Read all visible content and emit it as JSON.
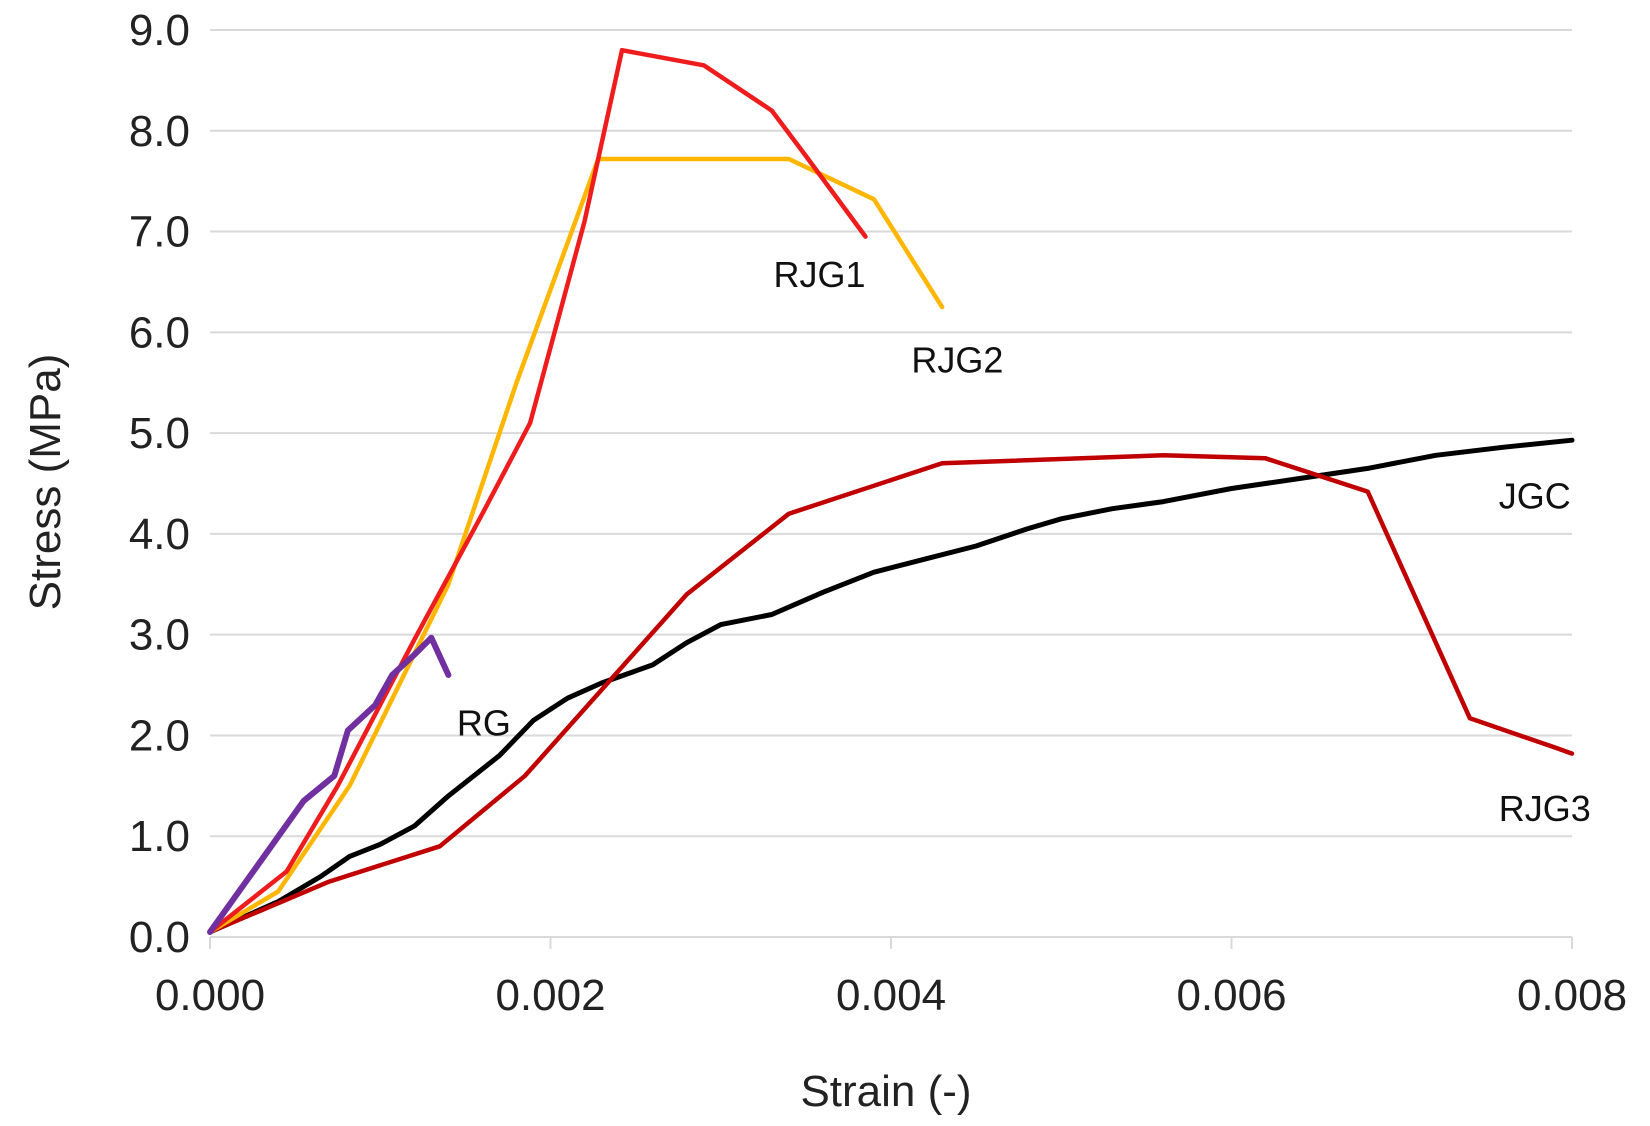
{
  "chart_data": {
    "type": "line",
    "title": "",
    "xlabel": "Strain (-)",
    "ylabel": "Stress (MPa)",
    "xlim": [
      0,
      0.008
    ],
    "ylim": [
      0,
      9
    ],
    "x_ticks": [
      0,
      0.002,
      0.004,
      0.006,
      0.008
    ],
    "x_tick_labels": [
      "0.000",
      "0.002",
      "0.004",
      "0.006",
      "0.008"
    ],
    "y_ticks": [
      0,
      1,
      2,
      3,
      4,
      5,
      6,
      7,
      8,
      9
    ],
    "y_tick_labels": [
      "0.0",
      "1.0",
      "2.0",
      "3.0",
      "4.0",
      "5.0",
      "6.0",
      "7.0",
      "8.0",
      "9.0"
    ],
    "grid": "horizontal",
    "legend": "none (series labeled inline)",
    "series": [
      {
        "name": "RG",
        "color": "#7030a0",
        "label": "RG",
        "points": [
          [
            0,
            0.05
          ],
          [
            0.00055,
            1.35
          ],
          [
            0.00073,
            1.6
          ],
          [
            0.00081,
            2.05
          ],
          [
            0.00097,
            2.3
          ],
          [
            0.00107,
            2.6
          ],
          [
            0.0012,
            2.8
          ],
          [
            0.0013,
            2.97
          ],
          [
            0.0014,
            2.6
          ]
        ]
      },
      {
        "name": "RJG1",
        "color": "#ee1c1c",
        "label": "RJG1",
        "points": [
          [
            0,
            0.05
          ],
          [
            0.00045,
            0.65
          ],
          [
            0.00075,
            1.5
          ],
          [
            0.0012,
            2.95
          ],
          [
            0.0016,
            4.2
          ],
          [
            0.00188,
            5.1
          ],
          [
            0.0022,
            7.1
          ],
          [
            0.00242,
            8.8
          ],
          [
            0.0029,
            8.65
          ],
          [
            0.0033,
            8.2
          ],
          [
            0.0035,
            7.75
          ],
          [
            0.00385,
            6.95
          ]
        ]
      },
      {
        "name": "RJG2",
        "color": "#ffb600",
        "label": "RJG2",
        "points": [
          [
            0,
            0.05
          ],
          [
            0.0004,
            0.45
          ],
          [
            0.00082,
            1.5
          ],
          [
            0.0014,
            3.5
          ],
          [
            0.0018,
            5.5
          ],
          [
            0.00228,
            7.72
          ],
          [
            0.0034,
            7.72
          ],
          [
            0.0039,
            7.32
          ],
          [
            0.0043,
            6.25
          ]
        ]
      },
      {
        "name": "RJG3",
        "color": "#c00000",
        "label": "RJG3",
        "points": [
          [
            0,
            0.05
          ],
          [
            0.0007,
            0.55
          ],
          [
            0.00135,
            0.9
          ],
          [
            0.00185,
            1.6
          ],
          [
            0.0028,
            3.4
          ],
          [
            0.0034,
            4.2
          ],
          [
            0.0043,
            4.7
          ],
          [
            0.0056,
            4.78
          ],
          [
            0.0062,
            4.75
          ],
          [
            0.0068,
            4.42
          ],
          [
            0.0074,
            2.17
          ],
          [
            0.0079,
            1.88
          ],
          [
            0.008,
            1.82
          ]
        ]
      },
      {
        "name": "JGC",
        "color": "#000000",
        "label": "JGC",
        "points": [
          [
            0,
            0.05
          ],
          [
            0.0004,
            0.35
          ],
          [
            0.00065,
            0.6
          ],
          [
            0.00082,
            0.8
          ],
          [
            0.001,
            0.92
          ],
          [
            0.0012,
            1.1
          ],
          [
            0.0014,
            1.4
          ],
          [
            0.0017,
            1.8
          ],
          [
            0.0019,
            2.15
          ],
          [
            0.0021,
            2.37
          ],
          [
            0.0023,
            2.52
          ],
          [
            0.0026,
            2.7
          ],
          [
            0.0028,
            2.92
          ],
          [
            0.003,
            3.1
          ],
          [
            0.0033,
            3.2
          ],
          [
            0.0036,
            3.42
          ],
          [
            0.0039,
            3.62
          ],
          [
            0.0042,
            3.75
          ],
          [
            0.0045,
            3.88
          ],
          [
            0.0048,
            4.05
          ],
          [
            0.005,
            4.15
          ],
          [
            0.0053,
            4.25
          ],
          [
            0.0056,
            4.32
          ],
          [
            0.006,
            4.45
          ],
          [
            0.0064,
            4.55
          ],
          [
            0.0068,
            4.65
          ],
          [
            0.0072,
            4.78
          ],
          [
            0.0076,
            4.86
          ],
          [
            0.008,
            4.93
          ]
        ]
      }
    ]
  }
}
